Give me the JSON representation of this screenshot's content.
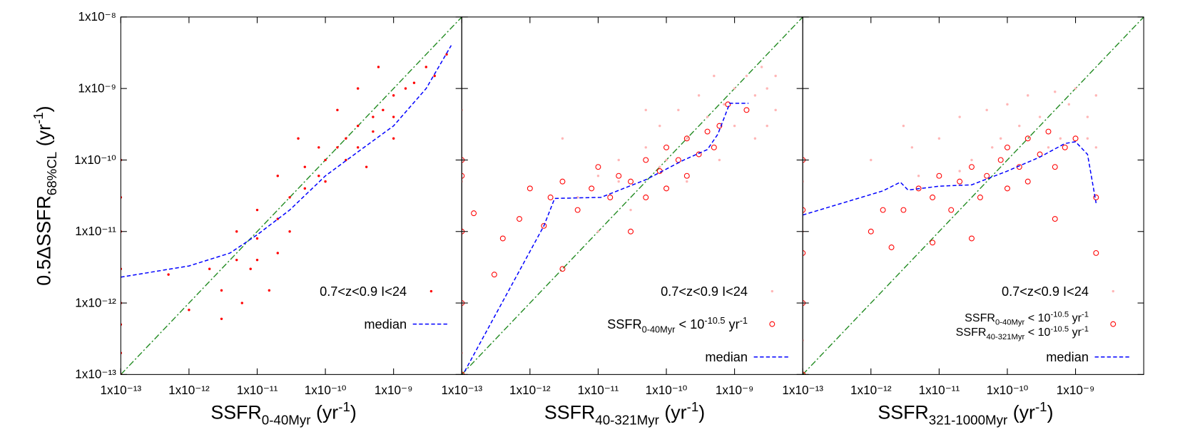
{
  "chart_data": [
    {
      "type": "scatter",
      "xscale": "log",
      "yscale": "log",
      "xlim": [
        1e-13,
        1e-08
      ],
      "ylim": [
        1e-13,
        1e-08
      ],
      "xticks": [
        {
          "value": 1e-13,
          "label": "1x10⁻¹³"
        },
        {
          "value": 1e-12,
          "label": "1x10⁻¹²"
        },
        {
          "value": 1e-11,
          "label": "1x10⁻¹¹"
        },
        {
          "value": 1e-10,
          "label": "1x10⁻¹⁰"
        },
        {
          "value": 1e-09,
          "label": "1x10⁻⁹"
        }
      ],
      "yticks": [
        {
          "value": 1e-13,
          "label": "1x10⁻¹³"
        },
        {
          "value": 1e-12,
          "label": "1x10⁻¹²"
        },
        {
          "value": 1e-11,
          "label": "1x10⁻¹¹"
        },
        {
          "value": 1e-10,
          "label": "1x10⁻¹⁰"
        },
        {
          "value": 1e-09,
          "label": "1x10⁻⁹"
        },
        {
          "value": 1e-08,
          "label": "1x10⁻⁸"
        }
      ],
      "ytick_labels": true,
      "xlabel": [
        {
          "text": "SSFR"
        },
        {
          "sub": "0-40Myr"
        },
        {
          "text": " (yr"
        },
        {
          "sup": "-1"
        },
        {
          "text": ")"
        }
      ],
      "ylabel": [
        {
          "text": "0.5ΔSSFR"
        },
        {
          "sub": "68%CL"
        },
        {
          "text": " (yr"
        },
        {
          "sup": "-1"
        },
        {
          "text": ")"
        }
      ],
      "identity_line": true,
      "identity_color": "#228b22",
      "legend": "lower right",
      "series": [
        {
          "name": "0.7<z<0.9 I<24",
          "color": "#ff0000",
          "marker": "dot",
          "x": [
            2e-12,
            5e-12,
            1e-11,
            1e-11,
            2e-11,
            3e-11,
            3e-11,
            5e-11,
            5e-11,
            8e-11,
            1e-10,
            1e-10,
            1.5e-10,
            2e-10,
            2e-10,
            3e-10,
            3e-10,
            5e-10,
            5e-10,
            7e-10,
            1e-09,
            1e-09,
            1.5e-09,
            2e-09,
            3e-09,
            4e-09,
            6e-09,
            3e-12,
            6e-12,
            2e-11,
            8e-12,
            1.5e-11,
            5e-13,
            1e-12,
            3e-12,
            4e-11,
            8e-11,
            2e-11,
            3e-10,
            6e-10,
            1.5e-10,
            5e-12,
            1e-11,
            4e-10,
            1e-09,
            1e-13,
            1e-13,
            1e-13,
            1e-13,
            1e-13,
            1e-13,
            1e-13,
            1e-13
          ],
          "values": [
            3e-12,
            4e-12,
            8e-12,
            2e-11,
            1.5e-11,
            3e-11,
            1e-11,
            4e-11,
            8e-11,
            6e-11,
            1e-10,
            5e-11,
            1.5e-10,
            2e-10,
            1e-10,
            3e-10,
            1.5e-10,
            4e-10,
            2.5e-10,
            5e-10,
            8e-10,
            4e-10,
            1e-09,
            1.2e-09,
            2e-09,
            1.5e-09,
            3e-09,
            1.5e-12,
            1e-12,
            5e-12,
            3e-12,
            1.5e-12,
            2.5e-12,
            8e-13,
            6e-13,
            2e-10,
            1.5e-10,
            6e-11,
            1e-09,
            2e-09,
            5e-10,
            1e-11,
            4e-12,
            8e-11,
            2e-10,
            1e-13,
            2e-13,
            5e-13,
            1e-12,
            3e-12,
            1e-11,
            3e-11,
            1e-10
          ]
        },
        {
          "name": "median",
          "color": "#0000ff",
          "marker": "line",
          "x": [
            1e-13,
            1e-12,
            4e-12,
            1e-11,
            3e-11,
            1e-10,
            3e-10,
            1e-09,
            3e-09,
            7e-09
          ],
          "values": [
            2.3e-12,
            3.3e-12,
            5e-12,
            9e-12,
            2e-11,
            6e-11,
            1.3e-10,
            3e-10,
            1e-09,
            4e-09
          ]
        }
      ]
    },
    {
      "type": "scatter",
      "xscale": "log",
      "yscale": "log",
      "xlim": [
        1e-13,
        1e-08
      ],
      "ylim": [
        1e-13,
        1e-08
      ],
      "xticks": [
        {
          "value": 1e-13,
          "label": "1x10⁻¹³"
        },
        {
          "value": 1e-12,
          "label": "1x10⁻¹²"
        },
        {
          "value": 1e-11,
          "label": "1x10⁻¹¹"
        },
        {
          "value": 1e-10,
          "label": "1x10⁻¹⁰"
        },
        {
          "value": 1e-09,
          "label": "1x10⁻⁹"
        }
      ],
      "yticks": [
        1e-13,
        1e-12,
        1e-11,
        1e-10,
        1e-09,
        1e-08
      ],
      "ytick_labels": false,
      "xlabel": [
        {
          "text": "SSFR"
        },
        {
          "sub": "40-321Myr"
        },
        {
          "text": " (yr"
        },
        {
          "sup": "-1"
        },
        {
          "text": ")"
        }
      ],
      "identity_line": true,
      "identity_color": "#228b22",
      "legend": "lower right",
      "series": [
        {
          "name": "0.7<z<0.9 I<24",
          "color": "#ffb6b6",
          "marker": "dot",
          "x": [
            2e-11,
            3e-11,
            5e-11,
            8e-11,
            1e-10,
            1.5e-10,
            2e-10,
            3e-10,
            4e-10,
            5e-10,
            7e-10,
            1e-09,
            1e-09,
            1.5e-09,
            2e-09,
            2.5e-09,
            3e-09,
            4e-09,
            4e-09,
            3e-09,
            2e-09,
            5e-12,
            1e-11,
            1e-11,
            2e-11,
            6e-10,
            2e-10,
            8e-11,
            3e-12,
            5e-11,
            1e-13,
            1e-13,
            1e-13,
            1e-13,
            1e-13,
            1e-13
          ],
          "values": [
            1e-10,
            2e-11,
            1.5e-10,
            3e-10,
            1e-10,
            5e-10,
            2e-10,
            8e-10,
            4e-10,
            1.5e-09,
            6e-10,
            1e-09,
            3e-10,
            1.5e-09,
            8e-10,
            2e-09,
            1e-09,
            1.5e-09,
            5e-10,
            3e-10,
            2e-10,
            3e-11,
            6e-11,
            1e-11,
            5e-11,
            1e-10,
            5e-11,
            8e-11,
            2e-10,
            5e-10,
            2e-13,
            1e-12,
            1e-11,
            5e-11,
            1e-10,
            5e-10
          ]
        },
        {
          "name": [
            [
              {
                "text": "SSFR"
              },
              {
                "sub": "0-40Myr"
              },
              {
                "text": " < 10"
              },
              {
                "sup": "-10.5"
              },
              {
                "text": " yr"
              },
              {
                "sup": "-1"
              }
            ]
          ],
          "color": "#ff0000",
          "marker": "circle",
          "x": [
            1.6e-12,
            2e-12,
            3e-12,
            5e-12,
            8e-12,
            1e-11,
            1.5e-11,
            2e-11,
            3e-11,
            3e-11,
            5e-11,
            5e-11,
            8e-11,
            1e-10,
            1e-10,
            1.5e-10,
            2e-10,
            2e-10,
            3e-10,
            4e-10,
            5e-10,
            6e-10,
            8e-10,
            1.5e-09,
            7e-13,
            3e-13,
            4e-13,
            3e-12,
            1e-12,
            1.5e-13,
            1e-13,
            1e-13,
            1e-13,
            1e-13,
            1e-13
          ],
          "values": [
            1.2e-11,
            3e-11,
            5e-11,
            2e-11,
            4e-11,
            8e-11,
            3e-11,
            6e-11,
            1e-11,
            5e-11,
            1e-10,
            3e-11,
            7e-11,
            1.5e-10,
            4e-11,
            1e-10,
            2e-10,
            6e-11,
            1.2e-10,
            2.5e-10,
            1.5e-10,
            3e-10,
            6e-10,
            5e-10,
            1.5e-11,
            2.5e-12,
            8e-12,
            3e-12,
            4e-11,
            1.8e-11,
            1e-13,
            1e-12,
            1e-11,
            6e-11,
            1e-10
          ]
        },
        {
          "name": "median",
          "color": "#0000ff",
          "marker": "line",
          "x": [
            1.1e-13,
            1.6e-12,
            2.3e-12,
            1.1e-11,
            5e-11,
            1.8e-10,
            4e-10,
            5.7e-10,
            8.5e-10,
            1.6e-09
          ],
          "values": [
            1.1e-13,
            1.2e-11,
            2.9e-11,
            3e-11,
            5.3e-11,
            1e-10,
            1.4e-10,
            2.3e-10,
            6.2e-10,
            6.2e-10
          ]
        }
      ]
    },
    {
      "type": "scatter",
      "xscale": "log",
      "yscale": "log",
      "xlim": [
        1e-13,
        1e-08
      ],
      "ylim": [
        1e-13,
        1e-08
      ],
      "xticks": [
        {
          "value": 1e-13,
          "label": "1x10⁻¹³"
        },
        {
          "value": 1e-12,
          "label": "1x10⁻¹²"
        },
        {
          "value": 1e-11,
          "label": "1x10⁻¹¹"
        },
        {
          "value": 1e-10,
          "label": "1x10⁻¹⁰"
        },
        {
          "value": 1e-09,
          "label": "1x10⁻⁹"
        }
      ],
      "yticks": [
        1e-13,
        1e-12,
        1e-11,
        1e-10,
        1e-09,
        1e-08
      ],
      "ytick_labels": false,
      "xlabel": [
        {
          "text": "SSFR"
        },
        {
          "sub": "321-1000Myr"
        },
        {
          "text": " (yr"
        },
        {
          "sup": "-1"
        },
        {
          "text": ")"
        }
      ],
      "identity_line": true,
      "identity_color": "#228b22",
      "legend": "lower right",
      "series": [
        {
          "name": "0.7<z<0.9 I<24",
          "color": "#ffb6b6",
          "marker": "dot",
          "x": [
            1e-12,
            3e-12,
            5e-12,
            1e-11,
            2e-11,
            3e-11,
            5e-11,
            8e-11,
            1e-10,
            1.5e-10,
            2e-10,
            3e-10,
            5e-10,
            6e-10,
            8e-10,
            1e-09,
            1.5e-09,
            2e-09,
            2e-09,
            1.5e-09,
            4e-12,
            2e-11,
            6e-11,
            4e-10,
            1e-13,
            1e-13,
            1e-13,
            1e-13
          ],
          "values": [
            1e-10,
            3e-10,
            6e-11,
            2e-10,
            4e-10,
            1e-10,
            5e-10,
            2e-10,
            6e-10,
            3e-10,
            8e-10,
            4e-10,
            9e-10,
            2e-10,
            6e-10,
            1e-09,
            4e-10,
            8e-10,
            1.5e-10,
            2e-10,
            1.5e-10,
            7e-11,
            1.5e-10,
            1.5e-10,
            3e-13,
            1e-12,
            1e-11,
            5e-11
          ]
        },
        {
          "name": [
            [
              {
                "text": "SSFR"
              },
              {
                "sub": "0-40Myr"
              },
              {
                "text": " < 10"
              },
              {
                "sup": "-10.5"
              },
              {
                "text": " yr"
              },
              {
                "sup": "-1"
              }
            ],
            [
              {
                "text": "SSFR"
              },
              {
                "sub": "40-321Myr"
              },
              {
                "text": " < 10"
              },
              {
                "sup": "-10.5"
              },
              {
                "text": " yr"
              },
              {
                "sup": "-1"
              }
            ]
          ],
          "color": "#ff0000",
          "marker": "circle",
          "x": [
            3e-12,
            5e-12,
            8e-12,
            1e-11,
            1.5e-11,
            2e-11,
            3e-11,
            4e-11,
            5e-11,
            8e-11,
            1e-10,
            1e-10,
            1.5e-10,
            2e-10,
            2e-10,
            3e-10,
            4e-10,
            5e-10,
            7e-10,
            1e-09,
            2e-09,
            2e-09,
            1e-12,
            1.5e-12,
            2e-12,
            8e-12,
            3e-11,
            5e-10,
            1e-13,
            1e-13,
            1e-13,
            1e-13,
            1e-13
          ],
          "values": [
            2e-11,
            4e-11,
            3e-11,
            6e-11,
            2e-11,
            5e-11,
            8e-11,
            3e-11,
            6e-11,
            1e-10,
            4e-11,
            1.5e-10,
            8e-11,
            2e-10,
            5e-11,
            1.2e-10,
            2.5e-10,
            8e-11,
            1.5e-10,
            2e-10,
            3e-11,
            5e-12,
            1e-11,
            2e-11,
            6e-12,
            7e-12,
            8e-12,
            1.5e-11,
            1e-13,
            1e-12,
            5e-12,
            2e-11,
            1e-10
          ]
        },
        {
          "name": "median",
          "color": "#0000ff",
          "marker": "line",
          "x": [
            1e-13,
            1.5e-12,
            2.7e-12,
            3.5e-12,
            1e-11,
            3e-11,
            1e-10,
            3e-10,
            7e-10,
            1e-09,
            1.5e-09,
            2e-09
          ],
          "values": [
            1.7e-11,
            3.7e-11,
            4.9e-11,
            3.8e-11,
            4.3e-11,
            4.5e-11,
            7e-11,
            1.1e-10,
            1.7e-10,
            1.8e-10,
            1.2e-10,
            2.5e-11
          ]
        }
      ]
    }
  ]
}
